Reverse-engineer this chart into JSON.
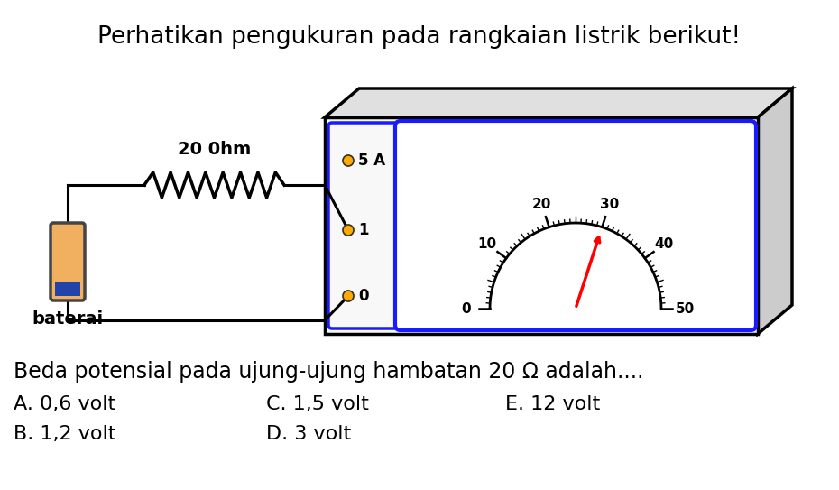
{
  "title": "Perhatikan pengukuran pada rangkaian listrik berikut!",
  "title_fontsize": 19,
  "question": "Beda potensial pada ujung-ujung hambatan 20 Ω adalah....",
  "question_fontsize": 17,
  "options": [
    [
      "A. 0,6 volt",
      "C. 1,5 volt",
      "E. 12 volt"
    ],
    [
      "B. 1,2 volt",
      "D. 3 volt",
      ""
    ]
  ],
  "options_fontsize": 16,
  "resistor_label": "20 0hm",
  "battery_label": "baterai",
  "background_color": "#ffffff",
  "circuit_color": "#000000",
  "meter_border_color": "#1a1aff",
  "needle_color": "#ff0000",
  "battery_body_color": "#f0b060",
  "battery_stripe_color": "#2244aa",
  "dot_color": "#ffaa00",
  "box_face_color": "#f8f8f8",
  "box_top_color": "#e0e0e0",
  "box_right_color": "#cccccc"
}
